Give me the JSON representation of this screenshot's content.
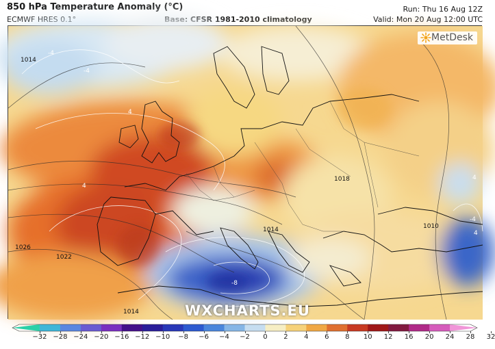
{
  "header": {
    "title": "850 hPa Temperature Anomaly (°C)",
    "model": "ECMWF HRES 0.1°",
    "base": "Base: CFSR 1981-2010 climatology",
    "run": "Run: Thu 16 Aug 12Z",
    "valid": "Valid: Mon 20 Aug 12:00 UTC"
  },
  "map": {
    "logo": "MetDesk",
    "watermark": "WXCHARTS.EU",
    "contour_labels": [
      "1014",
      "1026",
      "1022",
      "1018",
      "1014",
      "1010",
      "1014"
    ],
    "anomaly_labels": [
      "-4",
      "-4",
      "4",
      "4",
      "-8",
      "4",
      "-4",
      "4"
    ]
  },
  "colorbar": {
    "ticks": [
      "−32",
      "−28",
      "−24",
      "−20",
      "−16",
      "−12",
      "−10",
      "−8",
      "−6",
      "−4",
      "−2",
      "0",
      "2",
      "4",
      "6",
      "8",
      "10",
      "12",
      "16",
      "20",
      "24",
      "28",
      "32"
    ],
    "colors": [
      "#2bd0a8",
      "#3fb6d8",
      "#5a86e0",
      "#6a5ad2",
      "#7a2fc0",
      "#44108a",
      "#2a1e9a",
      "#2838b8",
      "#2c5ad0",
      "#4a86dc",
      "#86b6e6",
      "#c6ddf0",
      "#f6eec4",
      "#f6d27a",
      "#f0a844",
      "#e07030",
      "#c83a22",
      "#a01818",
      "#821a40",
      "#b02a88",
      "#d65cbc",
      "#f096d8"
    ]
  }
}
